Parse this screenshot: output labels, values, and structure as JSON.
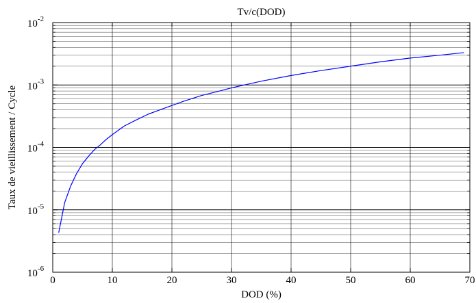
{
  "chart_data": {
    "type": "line",
    "title": "Tv/c(DOD)",
    "xlabel": "DOD (%)",
    "ylabel": "Taux de vieillissement / Cycle",
    "xlim": [
      0,
      70
    ],
    "ylim": [
      1e-06,
      0.01
    ],
    "yscale": "log",
    "grid": true,
    "x_ticks": [
      0,
      10,
      20,
      30,
      40,
      50,
      60,
      70
    ],
    "y_ticks": [
      {
        "base": "10",
        "exp": "-6",
        "value": 1e-06
      },
      {
        "base": "10",
        "exp": "-5",
        "value": 1e-05
      },
      {
        "base": "10",
        "exp": "-4",
        "value": 0.0001
      },
      {
        "base": "10",
        "exp": "-3",
        "value": 0.001
      },
      {
        "base": "10",
        "exp": "-2",
        "value": 0.01
      }
    ],
    "series": [
      {
        "color": "#0000ff",
        "x": [
          1,
          2,
          3,
          4,
          5,
          6,
          7,
          8,
          9,
          10,
          12,
          14,
          16,
          18,
          20,
          22,
          25,
          28,
          30,
          35,
          40,
          45,
          50,
          55,
          60,
          65,
          69
        ],
        "y": [
          4.3e-06,
          1.3e-05,
          2.4e-05,
          3.8e-05,
          5.5e-05,
          7.2e-05,
          9.2e-05,
          0.00011,
          0.000135,
          0.00016,
          0.00022,
          0.000275,
          0.00034,
          0.0004,
          0.00047,
          0.00055,
          0.00068,
          0.0008,
          0.0009,
          0.00115,
          0.00142,
          0.0017,
          0.002,
          0.00235,
          0.0027,
          0.003,
          0.0033
        ]
      }
    ]
  }
}
